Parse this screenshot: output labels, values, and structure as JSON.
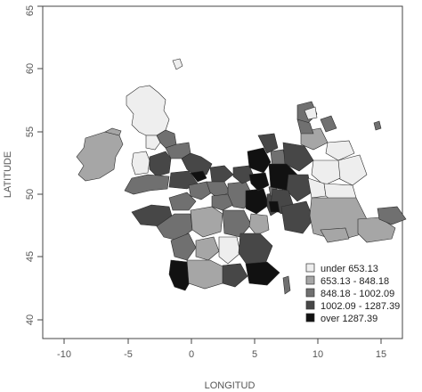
{
  "chart_data": {
    "type": "choropleth",
    "xlabel": "LONGITUD",
    "ylabel": "LATITUDE",
    "xlim": [
      -12,
      18
    ],
    "ylim": [
      38,
      65
    ],
    "x_ticks": [
      -10,
      -5,
      0,
      5,
      10,
      15
    ],
    "y_ticks": [
      40,
      45,
      50,
      55,
      60,
      65
    ],
    "colors": [
      "#eeeeee",
      "#a6a6a6",
      "#707070",
      "#474747",
      "#111111"
    ],
    "legend": {
      "position": "bottom-right",
      "entries": [
        "under 653.13",
        "653.13 - 848.18",
        "848.18 - 1002.09",
        "1002.09 - 1287.39",
        "over 1287.39"
      ]
    }
  }
}
